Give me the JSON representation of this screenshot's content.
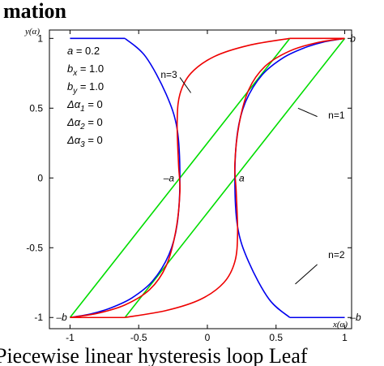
{
  "header_fragment": "mation",
  "caption_fragment": "Piecewise linear  hysteresis  loop  Leaf",
  "chart_data": {
    "type": "line",
    "title": "",
    "xlabel": "x(α)",
    "ylabel": "y(α)",
    "xlim": [
      -1.15,
      1.05
    ],
    "ylim": [
      -1.08,
      1.06
    ],
    "xticks": [
      -1,
      -0.5,
      0,
      0.5,
      1
    ],
    "yticks": [
      -1,
      -0.5,
      0,
      0.5,
      1
    ],
    "xtick_labels": [
      "-1",
      "-0.5",
      "0",
      "0.5",
      "1"
    ],
    "ytick_labels": [
      "-1",
      "-0.5",
      "0",
      "0.5",
      "1"
    ],
    "grid": false,
    "legend": [
      "a = 0.2",
      "bx = 1.0",
      "by = 1.0",
      "Δα1 = 0",
      "Δα2 = 0",
      "Δα3 = 0"
    ],
    "params": [
      {
        "name": "a",
        "sub": "",
        "value": "0.2"
      },
      {
        "name": "b",
        "sub": "x",
        "value": "1.0"
      },
      {
        "name": "b",
        "sub": "y",
        "value": "1.0"
      },
      {
        "name": "Δα",
        "sub": "1",
        "value": "0"
      },
      {
        "name": "Δα",
        "sub": "2",
        "value": "0"
      },
      {
        "name": "Δα",
        "sub": "3",
        "value": "0"
      }
    ],
    "series": [
      {
        "name": "n=1",
        "color": "#00dd00",
        "segments": [
          {
            "x": [
              -1,
              0.6
            ],
            "y": [
              -1,
              1
            ]
          },
          {
            "x": [
              -0.6,
              1
            ],
            "y": [
              -1,
              1
            ]
          }
        ]
      },
      {
        "name": "n=2",
        "color": "#0000ee",
        "segments": [
          {
            "x": [
              0.6,
              0.45,
              0.3,
              0.22,
              0.2,
              0.22,
              0.28,
              0.4,
              0.55,
              0.7,
              0.85,
              1.0
            ],
            "y": [
              -1,
              -0.87,
              -0.6,
              -0.35,
              0,
              0.33,
              0.55,
              0.74,
              0.86,
              0.93,
              0.975,
              1
            ]
          },
          {
            "x": [
              1.0,
              0.6
            ],
            "y": [
              -1,
              -1
            ]
          },
          {
            "x": [
              -0.6,
              -0.45,
              -0.3,
              -0.22,
              -0.2,
              -0.22,
              -0.28,
              -0.4,
              -0.55,
              -0.7,
              -0.85,
              -1.0
            ],
            "y": [
              1,
              0.87,
              0.6,
              0.35,
              0,
              -0.33,
              -0.55,
              -0.74,
              -0.86,
              -0.93,
              -0.975,
              -1
            ]
          },
          {
            "x": [
              -1.0,
              -0.6
            ],
            "y": [
              1,
              1
            ]
          }
        ]
      },
      {
        "name": "n=3",
        "color": "#ee0000",
        "segments": [
          {
            "x": [
              -1.0,
              -0.8,
              -0.6,
              -0.42,
              -0.3,
              -0.23,
              -0.2,
              -0.21,
              -0.22,
              -0.2,
              -0.12,
              0.05,
              0.3,
              0.6
            ],
            "y": [
              -1,
              -0.97,
              -0.91,
              -0.8,
              -0.63,
              -0.38,
              -0.1,
              0.1,
              0.4,
              0.6,
              0.75,
              0.87,
              0.95,
              1
            ]
          },
          {
            "x": [
              0.6,
              1.0
            ],
            "y": [
              1,
              1
            ]
          },
          {
            "x": [
              1.0,
              0.8,
              0.6,
              0.42,
              0.3,
              0.23,
              0.2,
              0.21,
              0.22,
              0.2,
              0.12,
              -0.05,
              -0.3,
              -0.6
            ],
            "y": [
              1,
              0.97,
              0.91,
              0.8,
              0.63,
              0.38,
              0.1,
              -0.1,
              -0.4,
              -0.6,
              -0.75,
              -0.87,
              -0.95,
              -1
            ]
          },
          {
            "x": [
              -0.6,
              -1.0
            ],
            "y": [
              -1,
              -1
            ]
          }
        ]
      }
    ],
    "annotations": [
      {
        "text": "n=3",
        "x": -0.34,
        "y": 0.74,
        "lx": [
          -0.2,
          -0.12
        ],
        "ly": [
          0.72,
          0.61
        ]
      },
      {
        "text": "n=1",
        "x": 0.88,
        "y": 0.45,
        "lx": [
          0.66,
          0.8
        ],
        "ly": [
          0.5,
          0.44
        ]
      },
      {
        "text": "n=2",
        "x": 0.88,
        "y": -0.55,
        "lx": [
          0.64,
          0.8
        ],
        "ly": [
          -0.76,
          -0.62
        ]
      },
      {
        "text": "b",
        "x": 1.04,
        "y": 1.0
      },
      {
        "text": "–b",
        "x": 1.04,
        "y": -1.0
      },
      {
        "text": "–b",
        "x": -1.1,
        "y": -1.0
      },
      {
        "text": "a",
        "x": 0.23,
        "y": 0.0
      },
      {
        "text": "–a",
        "x": -0.32,
        "y": 0.0
      }
    ]
  }
}
